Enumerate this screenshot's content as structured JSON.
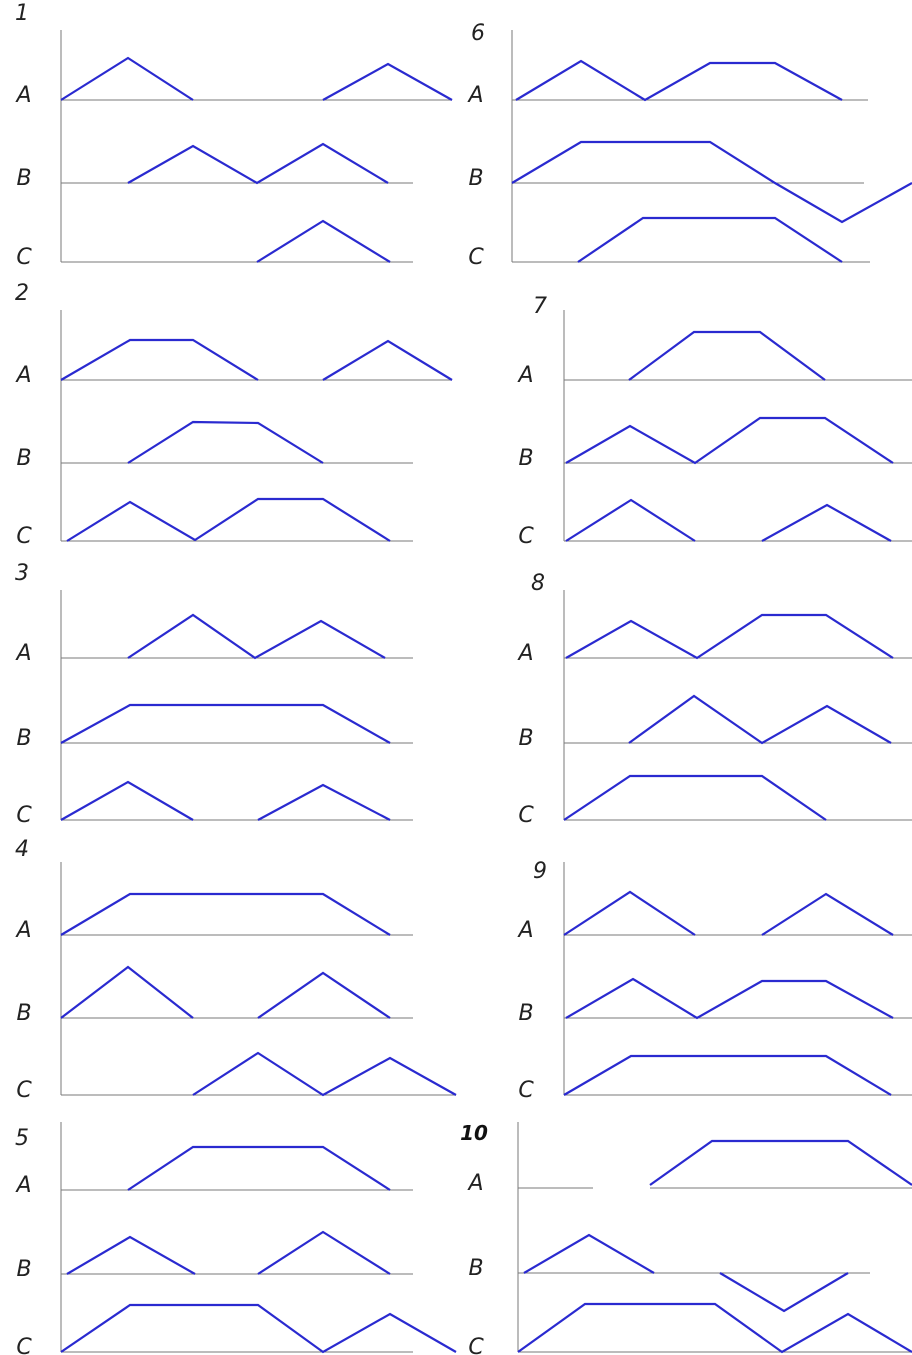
{
  "channels": [
    "A",
    "B",
    "C"
  ],
  "panels": [
    {
      "number": "1",
      "bold": false
    },
    {
      "number": "2",
      "bold": false
    },
    {
      "number": "3",
      "bold": false
    },
    {
      "number": "4",
      "bold": false
    },
    {
      "number": "5",
      "bold": false
    },
    {
      "number": "6",
      "bold": false
    },
    {
      "number": "7",
      "bold": false
    },
    {
      "number": "8",
      "bold": false
    },
    {
      "number": "9",
      "bold": false
    },
    {
      "number": "10",
      "bold": true
    }
  ],
  "colors": {
    "wave": "#2a2ad0",
    "axis": "#7a7a7a",
    "text": "#222222"
  }
}
